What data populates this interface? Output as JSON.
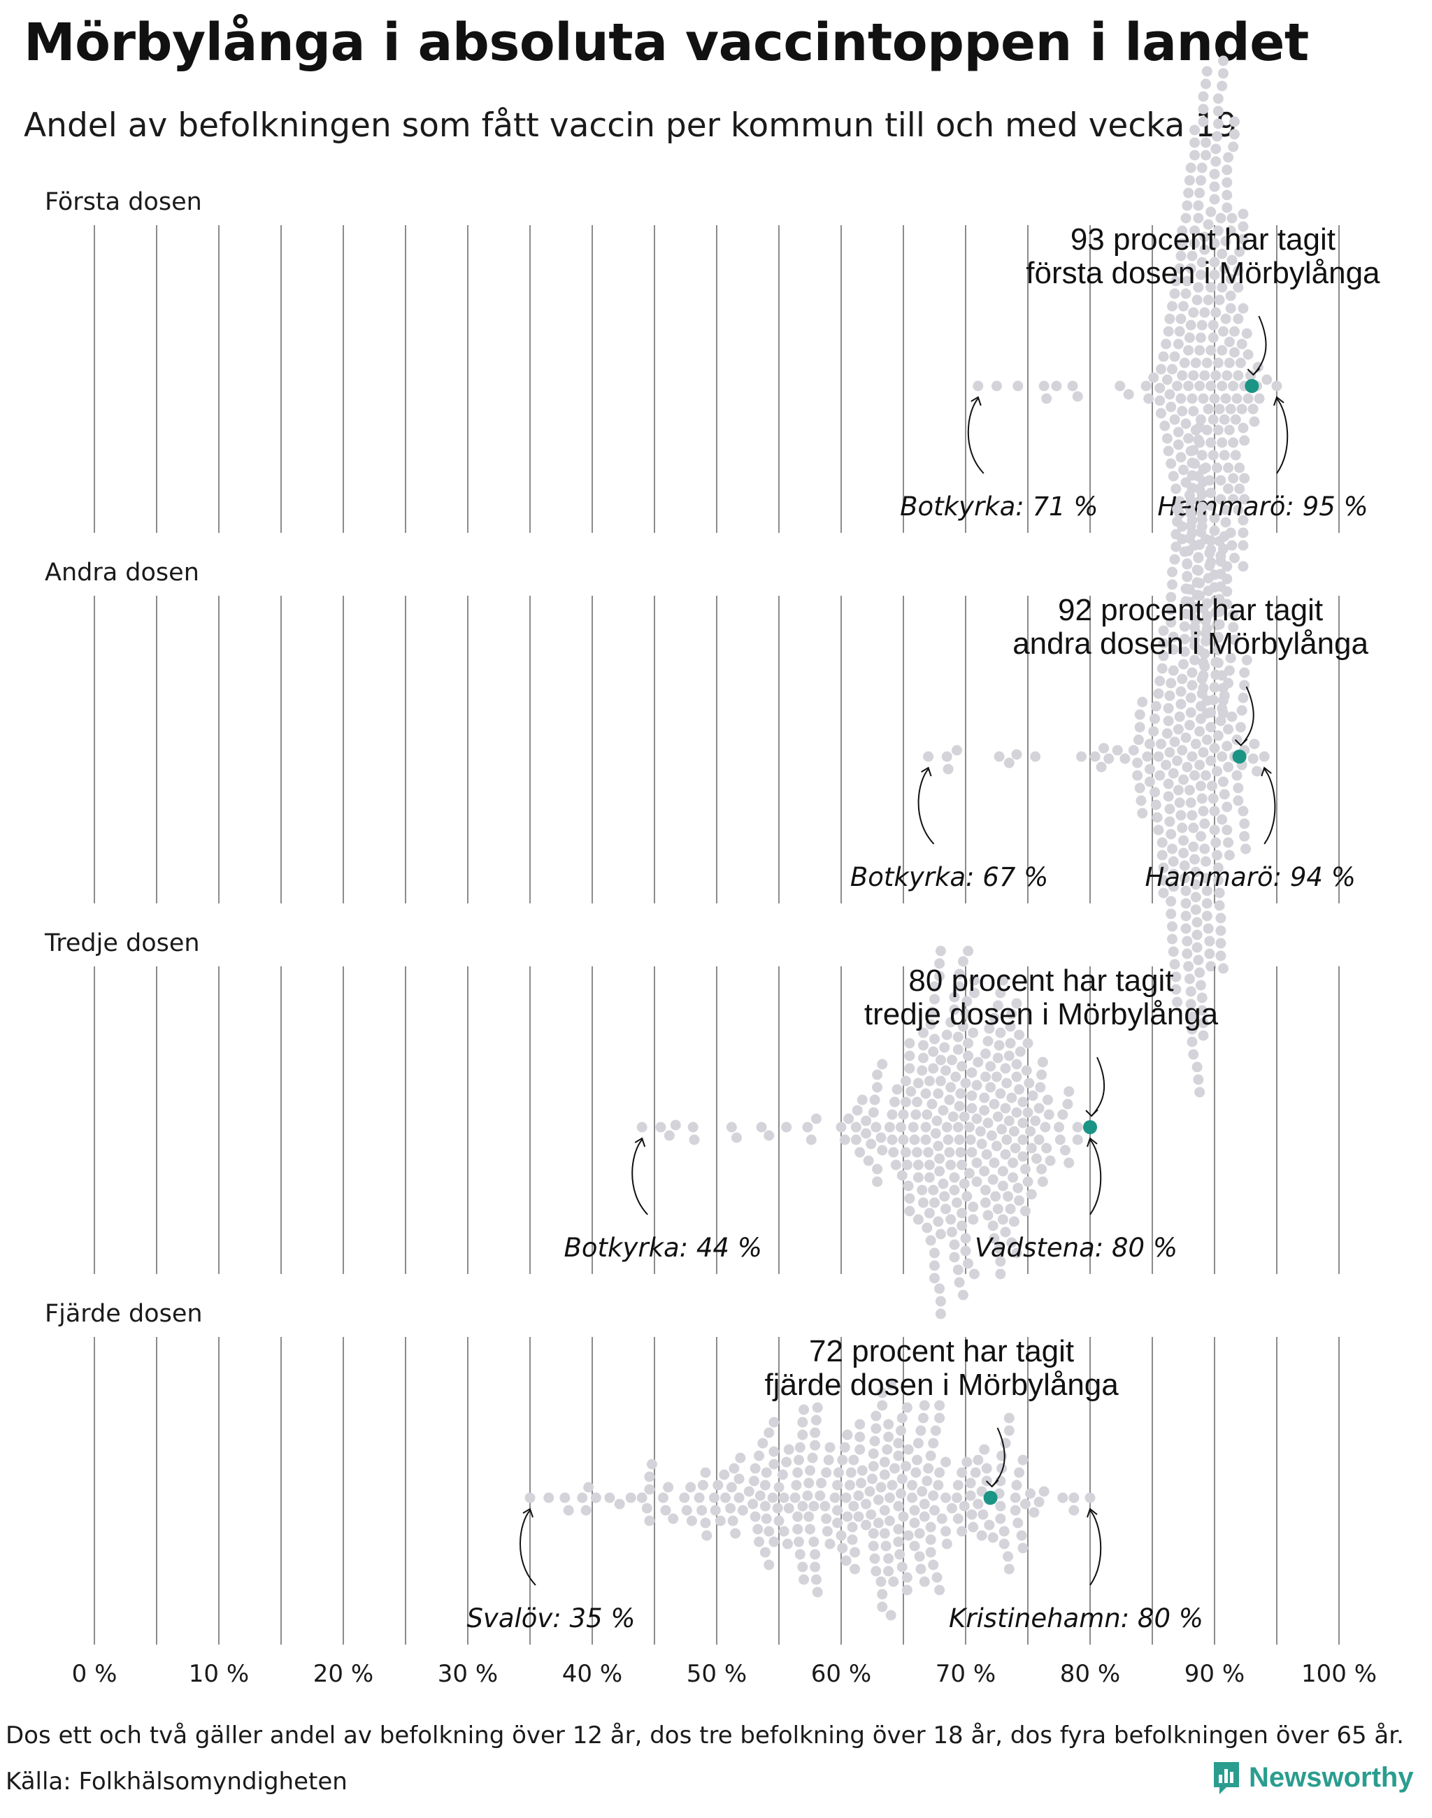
{
  "title": "Mörbylånga i absoluta vaccintoppen i landet",
  "subtitle": "Andel av befolkningen som fått vaccin per kommun till och med vecka 19",
  "footnote": "Dos ett och två gäller andel av befolkning över 12 år, dos tre befolkning över 18 år, dos fyra befolkningen över 65 år.",
  "source": "Källa: Folkhälsomyndigheten",
  "brand": "Newsworthy",
  "colors": {
    "dot": "#d4d3d9",
    "highlight": "#1a9485",
    "grid": "#5a5a5a",
    "brand": "#2a9d8f"
  },
  "chart_data": {
    "type": "scatter",
    "subtype": "beeswarm",
    "xlim": [
      0,
      100
    ],
    "x_ticks": [
      "0 %",
      "10 %",
      "20 %",
      "30 %",
      "40 %",
      "50 %",
      "60 %",
      "70 %",
      "80 %",
      "90 %",
      "100 %"
    ],
    "x_tick_values": [
      0,
      10,
      20,
      30,
      40,
      50,
      60,
      70,
      80,
      90,
      100
    ],
    "grid": "vertical lines every 5 %",
    "panels": [
      {
        "name": "Första dosen",
        "highlight": {
          "kommun": "Mörbylånga",
          "value": 93,
          "label_line1": "93 procent har tagit",
          "label_line2": "första dosen i Mörbylånga"
        },
        "min": {
          "label": "Botkyrka: 71 %",
          "value": 71
        },
        "max": {
          "label": "Hammarö: 95 %",
          "value": 95
        },
        "distribution": {
          "center": 89.5,
          "spread": 1.9
        }
      },
      {
        "name": "Andra dosen",
        "highlight": {
          "kommun": "Mörbylånga",
          "value": 92,
          "label_line1": "92 procent har tagit",
          "label_line2": "andra dosen i Mörbylånga"
        },
        "min": {
          "label": "Botkyrka: 67 %",
          "value": 67
        },
        "max": {
          "label": "Hammarö: 94 %",
          "value": 94
        },
        "distribution": {
          "center": 88.6,
          "spread": 2.2
        }
      },
      {
        "name": "Tredje dosen",
        "highlight": {
          "kommun": "Mörbylånga",
          "value": 80,
          "label_line1": "80 procent har tagit",
          "label_line2": "tredje dosen i Mörbylånga"
        },
        "min": {
          "label": "Botkyrka: 44 %",
          "value": 44
        },
        "max": {
          "label": "Vadstena: 80 %",
          "value": 80
        },
        "distribution": {
          "center": 69.5,
          "spread": 4.5
        }
      },
      {
        "name": "Fjärde dosen",
        "highlight": {
          "kommun": "Mörbylånga",
          "value": 72,
          "label_line1": "72 procent har tagit",
          "label_line2": "fjärde dosen i Mörbylånga"
        },
        "min": {
          "label": "Svalöv: 35 %",
          "value": 35
        },
        "max": {
          "label": "Kristinehamn: 80 %",
          "value": 80
        },
        "distribution": {
          "center": 62.5,
          "spread": 8.0
        }
      }
    ]
  }
}
